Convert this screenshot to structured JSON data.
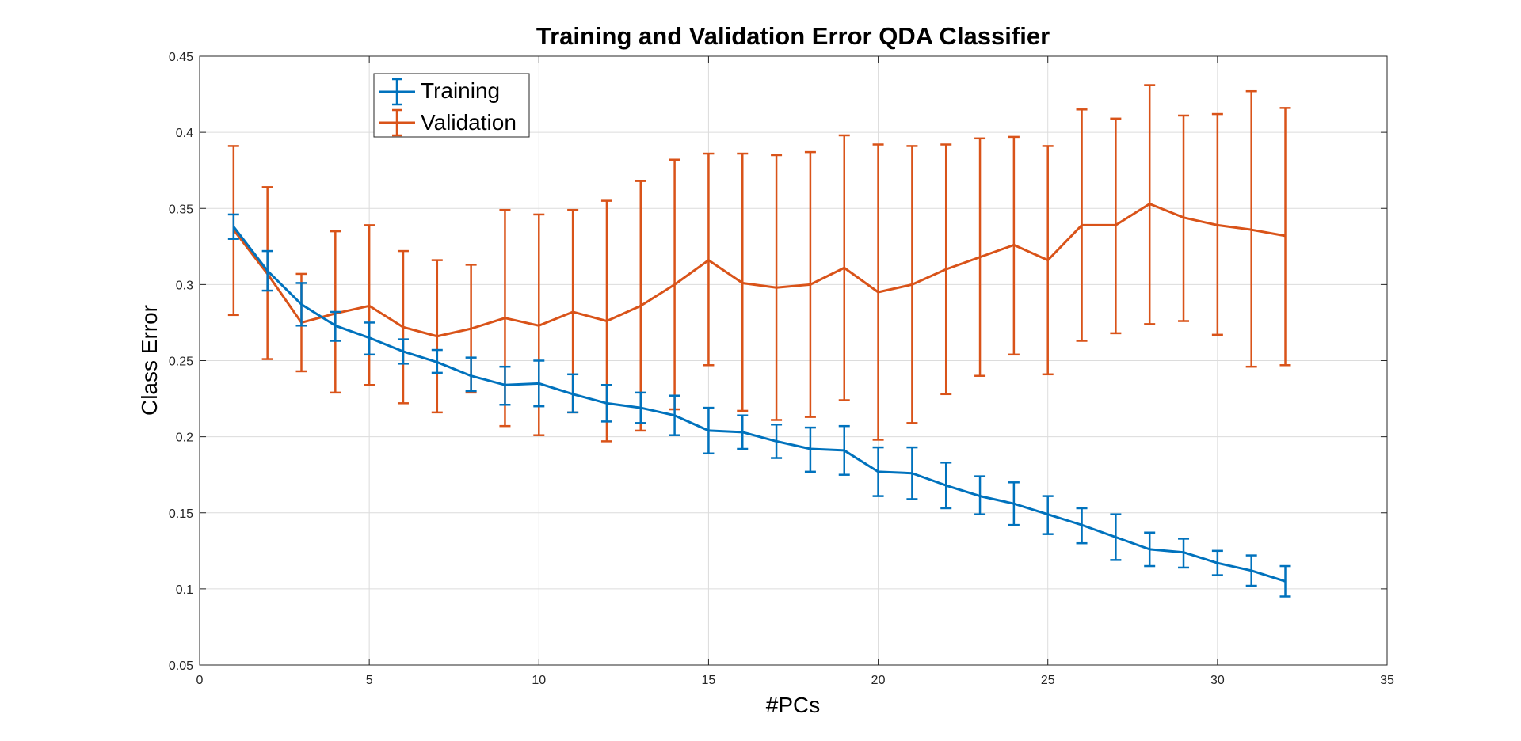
{
  "chart_data": {
    "type": "line",
    "title": "Training and Validation Error QDA Classifier",
    "xlabel": "#PCs",
    "ylabel": "Class Error",
    "xlim": [
      0,
      35
    ],
    "ylim": [
      0.05,
      0.45
    ],
    "xticks": [
      0,
      5,
      10,
      15,
      20,
      25,
      30,
      35
    ],
    "yticks": [
      0.05,
      0.1,
      0.15,
      0.2,
      0.25,
      0.3,
      0.35,
      0.4,
      0.45
    ],
    "xtick_labels": [
      "0",
      "5",
      "10",
      "15",
      "20",
      "25",
      "30",
      "35"
    ],
    "ytick_labels": [
      "0.05",
      "0.1",
      "0.15",
      "0.2",
      "0.25",
      "0.3",
      "0.35",
      "0.4",
      "0.45"
    ],
    "grid": true,
    "legend_position": "top-left",
    "x": [
      1,
      2,
      3,
      4,
      5,
      6,
      7,
      8,
      9,
      10,
      11,
      12,
      13,
      14,
      15,
      16,
      17,
      18,
      19,
      20,
      21,
      22,
      23,
      24,
      25,
      26,
      27,
      28,
      29,
      30,
      31,
      32
    ],
    "series": [
      {
        "name": "Training",
        "color": "#0072BD",
        "values": [
          0.338,
          0.309,
          0.287,
          0.273,
          0.265,
          0.256,
          0.249,
          0.24,
          0.234,
          0.235,
          0.228,
          0.222,
          0.219,
          0.214,
          0.204,
          0.203,
          0.197,
          0.192,
          0.191,
          0.177,
          0.176,
          0.168,
          0.161,
          0.156,
          0.149,
          0.142,
          0.134,
          0.126,
          0.124,
          0.117,
          0.112,
          0.105
        ],
        "lower": [
          0.33,
          0.296,
          0.273,
          0.263,
          0.254,
          0.248,
          0.242,
          0.23,
          0.221,
          0.22,
          0.216,
          0.21,
          0.209,
          0.201,
          0.189,
          0.192,
          0.186,
          0.177,
          0.175,
          0.161,
          0.159,
          0.153,
          0.149,
          0.142,
          0.136,
          0.13,
          0.119,
          0.115,
          0.114,
          0.109,
          0.102,
          0.095
        ],
        "upper": [
          0.346,
          0.322,
          0.301,
          0.282,
          0.275,
          0.264,
          0.257,
          0.252,
          0.246,
          0.25,
          0.241,
          0.234,
          0.229,
          0.227,
          0.219,
          0.214,
          0.208,
          0.206,
          0.207,
          0.193,
          0.193,
          0.183,
          0.174,
          0.17,
          0.161,
          0.153,
          0.149,
          0.137,
          0.133,
          0.125,
          0.122,
          0.115
        ]
      },
      {
        "name": "Validation",
        "color": "#D95319",
        "values": [
          0.336,
          0.307,
          0.275,
          0.281,
          0.286,
          0.272,
          0.266,
          0.271,
          0.278,
          0.273,
          0.282,
          0.276,
          0.286,
          0.3,
          0.316,
          0.301,
          0.298,
          0.3,
          0.311,
          0.295,
          0.3,
          0.31,
          0.318,
          0.326,
          0.316,
          0.339,
          0.339,
          0.353,
          0.344,
          0.339,
          0.336,
          0.332
        ],
        "lower": [
          0.28,
          0.251,
          0.243,
          0.229,
          0.234,
          0.222,
          0.216,
          0.229,
          0.207,
          0.201,
          0.216,
          0.197,
          0.204,
          0.218,
          0.247,
          0.217,
          0.211,
          0.213,
          0.224,
          0.198,
          0.209,
          0.228,
          0.24,
          0.254,
          0.241,
          0.263,
          0.268,
          0.274,
          0.276,
          0.267,
          0.246,
          0.247
        ],
        "upper": [
          0.391,
          0.364,
          0.307,
          0.335,
          0.339,
          0.322,
          0.316,
          0.313,
          0.349,
          0.346,
          0.349,
          0.355,
          0.368,
          0.382,
          0.386,
          0.386,
          0.385,
          0.387,
          0.398,
          0.392,
          0.391,
          0.392,
          0.396,
          0.397,
          0.391,
          0.415,
          0.409,
          0.431,
          0.411,
          0.412,
          0.427,
          0.416
        ]
      }
    ]
  }
}
